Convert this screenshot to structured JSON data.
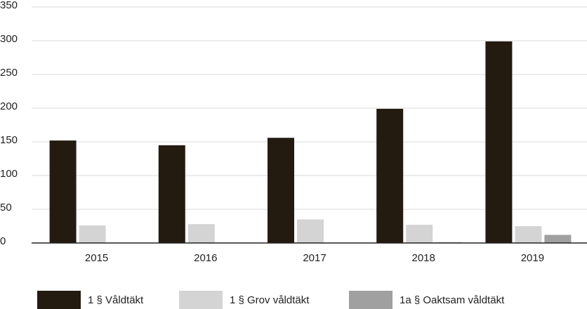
{
  "chart_data": {
    "type": "bar",
    "categories": [
      "2015",
      "2016",
      "2017",
      "2018",
      "2019"
    ],
    "series": [
      {
        "name": "1 § Våldtäkt",
        "color": "#231a10",
        "values": [
          152,
          145,
          156,
          199,
          299
        ]
      },
      {
        "name": "1 § Grov våldtäkt",
        "color": "#d4d4d4",
        "values": [
          26,
          28,
          35,
          27,
          25
        ]
      },
      {
        "name": "1a § Oaktsam våldtäkt",
        "color": "#a0a0a0",
        "values": [
          0,
          0,
          0,
          1,
          12
        ]
      }
    ],
    "ylim": [
      0,
      350
    ],
    "yticks": [
      0,
      50,
      100,
      150,
      200,
      250,
      300,
      350
    ],
    "grid": true,
    "legend": "bottom"
  }
}
